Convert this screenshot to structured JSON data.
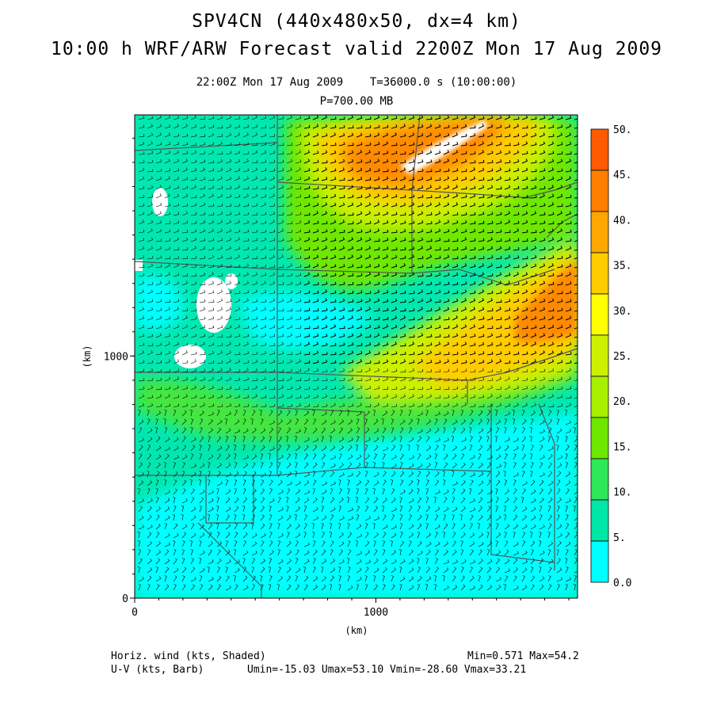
{
  "header": {
    "title_line1": "SPV4CN (440x480x50, dx=4 km)",
    "title_line2": "10:00 h WRF/ARW Forecast valid 2200Z Mon 17 Aug 2009",
    "time_line": "22:00Z Mon 17 Aug 2009    T=36000.0 s (10:00:00)",
    "level_line": "P=700.00 MB"
  },
  "axes": {
    "x_label": "(km)",
    "y_label": "(km)",
    "x_ticks": [
      {
        "label": "0",
        "value": 0
      },
      {
        "label": "1000",
        "value": 1000
      }
    ],
    "y_ticks": [
      {
        "label": "0",
        "value": 0
      },
      {
        "label": "1000",
        "value": 1000
      }
    ],
    "x_range": [
      0,
      1836
    ],
    "y_range": [
      0,
      1996
    ]
  },
  "colorbar": {
    "levels": [
      "0.0",
      "5.",
      "10.",
      "15.",
      "20.",
      "25.",
      "30.",
      "35.",
      "40.",
      "45.",
      "50."
    ],
    "colors": [
      "#00ffff",
      "#00e6a6",
      "#2ee85a",
      "#6ee800",
      "#a6f000",
      "#ccf000",
      "#ffff00",
      "#ffcc00",
      "#ffa600",
      "#ff7f00",
      "#ff5a00"
    ]
  },
  "footer": {
    "left_line1": "Horiz. wind (kts, Shaded)",
    "right_line1": "Min=0.571 Max=54.2",
    "left_line2": "U-V (kts, Barb)",
    "right_line2": "Umin=-15.03 Umax=53.10 Vmin=-28.60 Vmax=33.21"
  },
  "map_colors": {
    "background_field": "#00f0c0",
    "boundaries": "#555555",
    "barbs": "#000000",
    "missing": "#ffffff"
  }
}
